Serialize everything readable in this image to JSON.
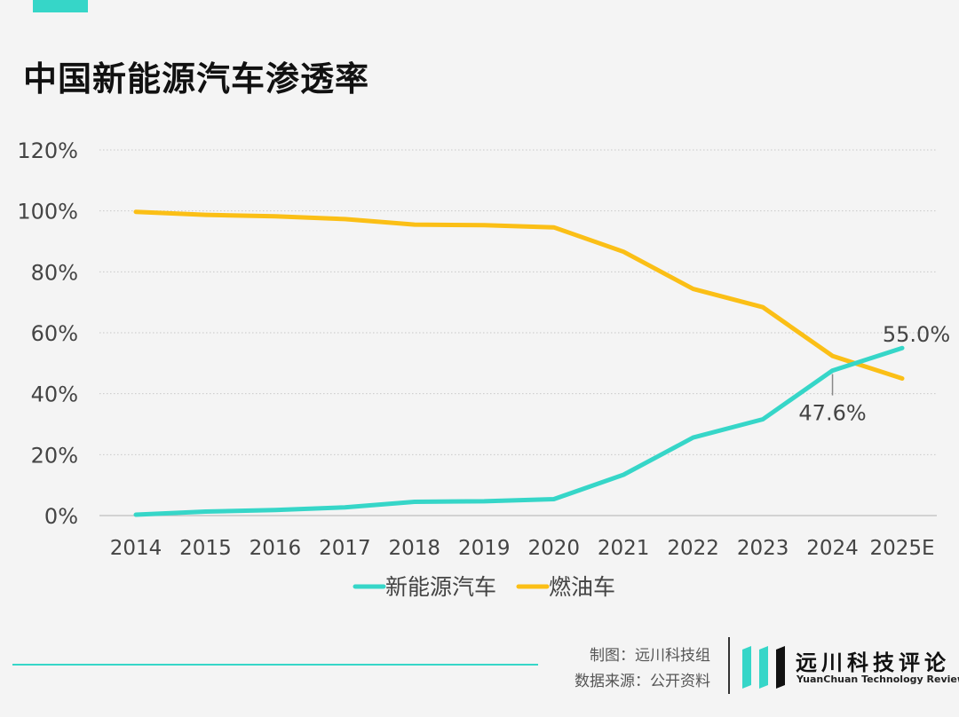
{
  "header": {
    "title": "中国新能源汽车渗透率"
  },
  "colors": {
    "background": "#f4f4f4",
    "accent": "#36d6c8",
    "nev_line": "#36d6c8",
    "ice_line": "#fbbf16",
    "grid": "#c8c8c8",
    "text": "#444444"
  },
  "chart_data": {
    "type": "line",
    "title": "中国新能源汽车渗透率",
    "xlabel": "",
    "ylabel": "",
    "categories": [
      "2014",
      "2015",
      "2016",
      "2017",
      "2018",
      "2019",
      "2020",
      "2021",
      "2022",
      "2023",
      "2024",
      "2025E"
    ],
    "ylim": [
      0,
      120
    ],
    "yticks": [
      0,
      20,
      40,
      60,
      80,
      100,
      120
    ],
    "ytick_labels": [
      "0%",
      "20%",
      "40%",
      "60%",
      "80%",
      "100%",
      "120%"
    ],
    "grid": true,
    "legend_position": "bottom-center",
    "series": [
      {
        "name": "新能源汽车",
        "color": "#36d6c8",
        "values": [
          0.3,
          1.3,
          1.8,
          2.7,
          4.5,
          4.7,
          5.4,
          13.4,
          25.6,
          31.6,
          47.6,
          55.0
        ]
      },
      {
        "name": "燃油车",
        "color": "#fbbf16",
        "values": [
          99.7,
          98.7,
          98.2,
          97.3,
          95.5,
          95.3,
          94.6,
          86.6,
          74.4,
          68.4,
          52.4,
          45.0
        ]
      }
    ],
    "annotations": [
      {
        "series": 0,
        "index": 10,
        "text": "47.6%",
        "placement": "below"
      },
      {
        "series": 0,
        "index": 11,
        "text": "55.0%",
        "placement": "above"
      }
    ]
  },
  "footer": {
    "credit_maker": "制图：远川科技组",
    "credit_source": "数据来源：公开资料",
    "brand_cn": "远川科技评论",
    "brand_en": "YuanChuan Technology Review"
  }
}
